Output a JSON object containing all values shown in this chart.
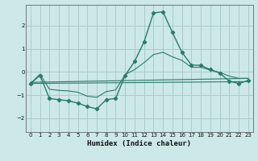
{
  "title": "",
  "xlabel": "Humidex (Indice chaleur)",
  "bg_color": "#cce8e8",
  "grid_color": "#aacccc",
  "line_color": "#2a7a6a",
  "xlim": [
    -0.5,
    23.5
  ],
  "ylim": [
    -2.6,
    2.9
  ],
  "xticks": [
    0,
    1,
    2,
    3,
    4,
    5,
    6,
    7,
    8,
    9,
    10,
    11,
    12,
    13,
    14,
    15,
    16,
    17,
    18,
    19,
    20,
    21,
    22,
    23
  ],
  "yticks": [
    -2,
    -1,
    0,
    1,
    2
  ],
  "line1_x": [
    0,
    1,
    2,
    3,
    4,
    5,
    6,
    7,
    8,
    9,
    10,
    11,
    12,
    13,
    14,
    15,
    16,
    17,
    18,
    19,
    20,
    21,
    22,
    23
  ],
  "line1_y": [
    -0.5,
    -0.15,
    -1.15,
    -1.2,
    -1.25,
    -1.35,
    -1.5,
    -1.6,
    -1.2,
    -1.15,
    -0.15,
    0.45,
    1.3,
    2.55,
    2.6,
    1.7,
    0.85,
    0.3,
    0.28,
    0.1,
    -0.05,
    -0.4,
    -0.5,
    -0.38
  ],
  "line2_x": [
    0,
    1,
    2,
    3,
    4,
    5,
    6,
    7,
    8,
    9,
    10,
    11,
    12,
    13,
    14,
    15,
    16,
    17,
    18,
    19,
    20,
    21,
    22,
    23
  ],
  "line2_y": [
    -0.5,
    -0.1,
    -0.75,
    -0.8,
    -0.82,
    -0.88,
    -1.05,
    -1.1,
    -0.85,
    -0.78,
    -0.12,
    0.1,
    0.4,
    0.75,
    0.85,
    0.65,
    0.5,
    0.2,
    0.2,
    0.08,
    -0.02,
    -0.18,
    -0.28,
    -0.28
  ],
  "line3_x": [
    0,
    23
  ],
  "line3_y": [
    -0.45,
    -0.28
  ],
  "line4_x": [
    0,
    23
  ],
  "line4_y": [
    -0.5,
    -0.42
  ]
}
